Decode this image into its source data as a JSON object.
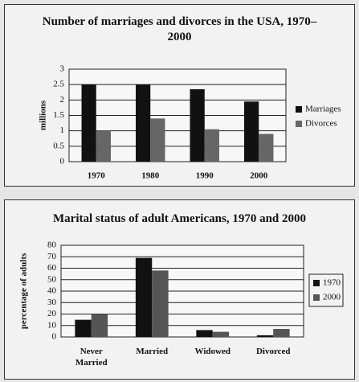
{
  "chart_data": [
    {
      "type": "bar",
      "title": "Number of marriages and divorces in the USA, 1970–2000",
      "y_label": "millions",
      "categories": [
        "1970",
        "1980",
        "1990",
        "2000"
      ],
      "series": [
        {
          "name": "Marriages",
          "color": "#111111",
          "values": [
            2.5,
            2.5,
            2.35,
            1.95
          ]
        },
        {
          "name": "Divorces",
          "color": "#666666",
          "values": [
            1,
            1.4,
            1.05,
            0.9
          ]
        }
      ],
      "ylim": [
        0,
        3
      ],
      "yticks": [
        0,
        0.5,
        1,
        1.5,
        2,
        2.5,
        3
      ],
      "grid": true,
      "legend": "right"
    },
    {
      "type": "bar",
      "title": "Marital status of adult Americans, 1970 and 2000",
      "y_label": "percentage of adults",
      "categories": [
        "Never Married",
        "Married",
        "Widowed",
        "Divorced"
      ],
      "series": [
        {
          "name": "1970",
          "color": "#111111",
          "values": [
            15,
            69,
            6,
            1.5
          ]
        },
        {
          "name": "2000",
          "color": "#555555",
          "values": [
            20,
            58,
            4.5,
            7
          ]
        }
      ],
      "ylim": [
        0,
        80
      ],
      "yticks": [
        0,
        10,
        20,
        30,
        40,
        50,
        60,
        70,
        80
      ],
      "grid": true,
      "legend": "right"
    }
  ]
}
